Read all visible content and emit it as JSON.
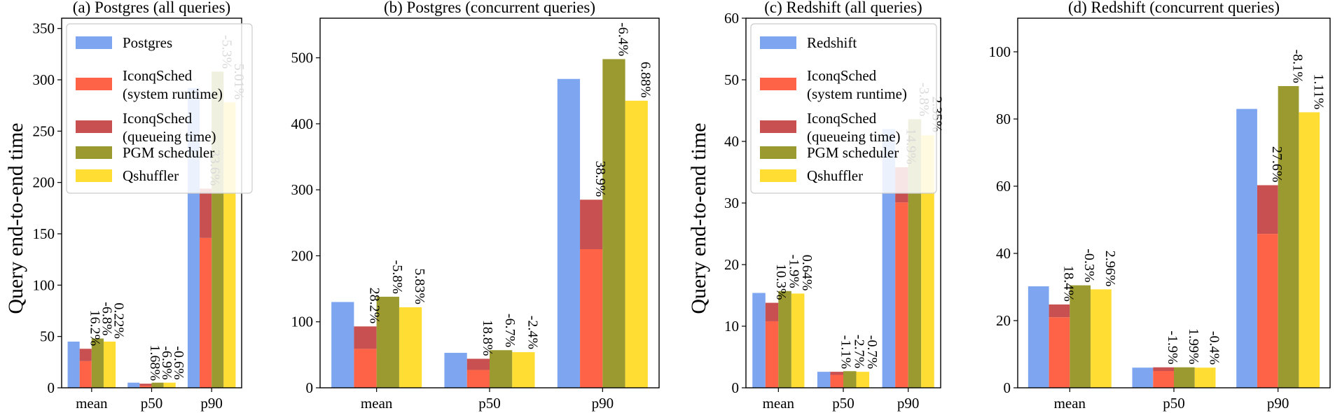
{
  "ylabel": "Query end-to-end time",
  "legend_colors": {
    "baseline": "#7ea6f0",
    "system_runtime": "#ff6347",
    "queueing_time": "#c85050",
    "pgm": "#9a9a30",
    "qshuffler": "#ffdd33"
  },
  "chart_data": [
    {
      "type": "bar",
      "title": "(a) Postgres (all queries)",
      "categories": [
        "mean",
        "p50",
        "p90"
      ],
      "ylim": [
        0,
        360
      ],
      "yticks": [
        0,
        50,
        100,
        150,
        200,
        250,
        300,
        350
      ],
      "legend": [
        "Postgres",
        "IconqSched\n(system runtime)",
        "IconqSched\n(queueing time)",
        "PGM scheduler",
        "Qshuffler"
      ],
      "legend_position": "top-left",
      "series": [
        {
          "name": "Postgres",
          "values": [
            45,
            5,
            292
          ]
        },
        {
          "name": "IconqSched (system runtime)",
          "values": [
            26,
            2,
            146
          ]
        },
        {
          "name": "IconqSched (queueing time)",
          "values": [
            12,
            2,
            48
          ]
        },
        {
          "name": "PGM scheduler",
          "values": [
            48,
            5,
            308
          ]
        },
        {
          "name": "Qshuffler",
          "values": [
            45,
            5,
            278
          ]
        }
      ],
      "annotations": [
        [
          "16.2%",
          "-6.8%",
          "0.22%"
        ],
        [
          "1.68%",
          "-6.9%",
          "-0.6%"
        ],
        [
          "33.6%",
          "-5.3%",
          "5.01%"
        ]
      ]
    },
    {
      "type": "bar",
      "title": "(b) Postgres (concurrent queries)",
      "categories": [
        "mean",
        "p50",
        "p90"
      ],
      "ylim": [
        0,
        560
      ],
      "yticks": [
        0,
        100,
        200,
        300,
        400,
        500
      ],
      "legend": [],
      "series": [
        {
          "name": "Postgres",
          "values": [
            130,
            53,
            468
          ]
        },
        {
          "name": "IconqSched (system runtime)",
          "values": [
            59,
            27,
            210
          ]
        },
        {
          "name": "IconqSched (queueing time)",
          "values": [
            34,
            17,
            75
          ]
        },
        {
          "name": "PGM scheduler",
          "values": [
            138,
            57,
            498
          ]
        },
        {
          "name": "Qshuffler",
          "values": [
            122,
            54,
            435
          ]
        }
      ],
      "annotations": [
        [
          "28.2%",
          "-5.8%",
          "5.83%"
        ],
        [
          "18.8%",
          "-6.7%",
          "-2.4%"
        ],
        [
          "38.9%",
          "-6.4%",
          "6.88%"
        ]
      ]
    },
    {
      "type": "bar",
      "title": "(c) Redshift (all queries)",
      "categories": [
        "mean",
        "p50",
        "p90"
      ],
      "ylim": [
        0,
        60
      ],
      "yticks": [
        0,
        10,
        20,
        30,
        40,
        50,
        60
      ],
      "legend": [
        "Redshift",
        "IconqSched\n(system runtime)",
        "IconqSched\n(queueing time)",
        "PGM scheduler",
        "Qshuffler"
      ],
      "legend_position": "top-left",
      "series": [
        {
          "name": "Redshift",
          "values": [
            15.4,
            2.6,
            42
          ]
        },
        {
          "name": "IconqSched (system runtime)",
          "values": [
            10.8,
            2.1,
            30.1
          ]
        },
        {
          "name": "IconqSched (queueing time)",
          "values": [
            3,
            0.5,
            5.7
          ]
        },
        {
          "name": "PGM scheduler",
          "values": [
            15.7,
            2.7,
            43.6
          ]
        },
        {
          "name": "Qshuffler",
          "values": [
            15.3,
            2.6,
            41
          ]
        }
      ],
      "annotations": [
        [
          "10.3%",
          "-1.9%",
          "0.64%"
        ],
        [
          "-1.1%",
          "-2.7%",
          "-0.7%"
        ],
        [
          "14.9%",
          "-3.8%",
          "2.35%"
        ]
      ]
    },
    {
      "type": "bar",
      "title": "(d) Redshift (concurrent queries)",
      "categories": [
        "mean",
        "p50",
        "p90"
      ],
      "ylim": [
        0,
        110
      ],
      "yticks": [
        0,
        20,
        40,
        60,
        80,
        100
      ],
      "legend": [],
      "series": [
        {
          "name": "Redshift",
          "values": [
            30.2,
            6,
            83
          ]
        },
        {
          "name": "IconqSched (system runtime)",
          "values": [
            21,
            5,
            45.8
          ]
        },
        {
          "name": "IconqSched (queueing time)",
          "values": [
            3.8,
            1.1,
            14.5
          ]
        },
        {
          "name": "PGM scheduler",
          "values": [
            30.5,
            6.1,
            89.8
          ]
        },
        {
          "name": "Qshuffler",
          "values": [
            29.3,
            6,
            82
          ]
        }
      ],
      "annotations": [
        [
          "18.4%",
          "-0.3%",
          "2.96%"
        ],
        [
          "-1.9%",
          "1.99%",
          "-0.4%"
        ],
        [
          "27.6%",
          "-8.1%",
          "1.11%"
        ]
      ]
    }
  ]
}
